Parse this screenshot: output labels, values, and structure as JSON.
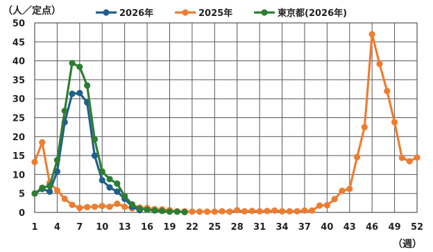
{
  "chart_data": {
    "type": "line",
    "y_unit_label": "（人／定点）",
    "x_unit_label": "（週）",
    "xlim": [
      1,
      52
    ],
    "ylim": [
      0,
      50
    ],
    "x_ticks": [
      1,
      4,
      7,
      10,
      13,
      16,
      19,
      22,
      25,
      28,
      31,
      34,
      37,
      40,
      43,
      46,
      49,
      52
    ],
    "y_ticks": [
      0,
      5,
      10,
      15,
      20,
      25,
      30,
      35,
      40,
      45,
      50
    ],
    "grid": true,
    "legend_position": "top",
    "series": [
      {
        "name": "2026年",
        "color": "#1f5f8b",
        "x": [
          1,
          2,
          3,
          4,
          5,
          6,
          7,
          8,
          9,
          10,
          11,
          12,
          13,
          14,
          15
        ],
        "y": [
          5.0,
          6.2,
          5.5,
          10.8,
          23.8,
          31.3,
          31.5,
          29.0,
          15.0,
          8.5,
          6.6,
          5.5,
          3.6,
          1.5,
          0.6
        ]
      },
      {
        "name": "2025年",
        "color": "#ed7d31",
        "x": [
          1,
          2,
          3,
          4,
          5,
          6,
          7,
          8,
          9,
          10,
          11,
          12,
          13,
          14,
          15,
          16,
          17,
          18,
          19,
          20,
          21,
          22,
          23,
          24,
          25,
          26,
          27,
          28,
          29,
          30,
          31,
          32,
          33,
          34,
          35,
          36,
          37,
          38,
          39,
          40,
          41,
          42,
          43,
          44,
          45,
          46,
          47,
          48,
          49,
          50,
          51,
          52
        ],
        "y": [
          13.3,
          18.5,
          7.8,
          5.8,
          3.6,
          2.0,
          1.2,
          1.4,
          1.5,
          1.7,
          1.5,
          2.3,
          1.5,
          1.1,
          1.3,
          1.2,
          0.9,
          0.8,
          0.6,
          0.3,
          0.3,
          0.2,
          0.2,
          0.2,
          0.2,
          0.3,
          0.2,
          0.6,
          0.3,
          0.4,
          0.3,
          0.4,
          0.5,
          0.3,
          0.3,
          0.3,
          0.5,
          0.5,
          1.8,
          1.9,
          3.5,
          5.7,
          6.2,
          14.6,
          22.5,
          47.0,
          39.2,
          32.0,
          23.8,
          14.4,
          13.5,
          14.5
        ]
      },
      {
        "name": "東京都(2026年)",
        "color": "#2e7d32",
        "x": [
          1,
          2,
          3,
          4,
          5,
          6,
          7,
          8,
          9,
          10,
          11,
          12,
          13,
          14,
          15,
          16,
          17,
          18,
          19,
          20,
          21
        ],
        "y": [
          5.0,
          6.5,
          7.0,
          13.8,
          26.8,
          39.4,
          38.4,
          33.5,
          19.3,
          10.8,
          8.8,
          7.6,
          4.3,
          2.1,
          1.0,
          0.7,
          0.5,
          0.4,
          0.2,
          0.2,
          0.1
        ]
      }
    ]
  }
}
